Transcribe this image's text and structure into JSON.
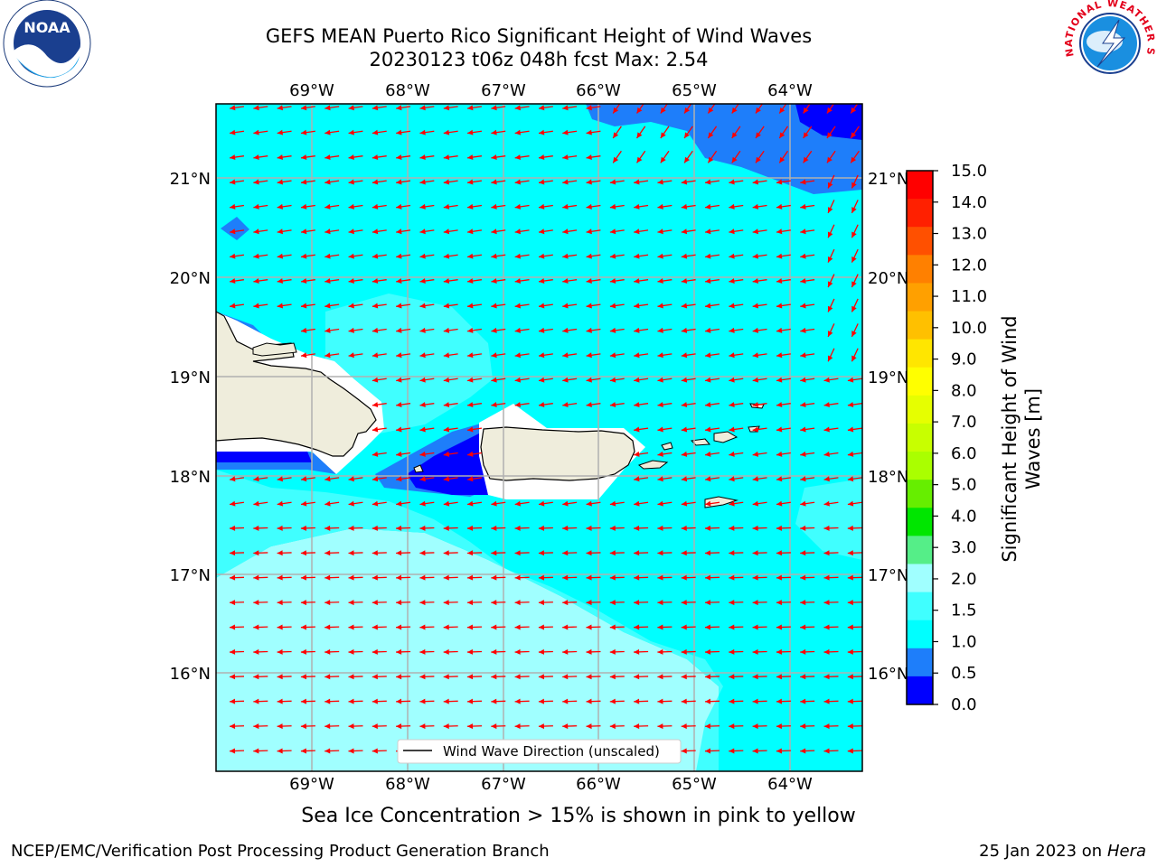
{
  "header": {
    "title_line1": "GEFS MEAN Puerto Rico Significant Height of Wind Waves",
    "title_line2": "20230123 t06z 048h fcst   Max: 2.54",
    "noaa_logo": "NOAA",
    "nws_logo": "NATIONAL WEATHER SERVICE"
  },
  "map": {
    "lon_ticks": [
      "69°W",
      "68°W",
      "67°W",
      "66°W",
      "65°W",
      "64°W"
    ],
    "lat_ticks": [
      "21°N",
      "20°N",
      "19°N",
      "18°N",
      "17°N",
      "16°N"
    ],
    "legend_label": "Wind Wave Direction (unscaled)",
    "arrow_color": "#ff0000",
    "land_color": "#efeddc",
    "ocean_colors": {
      "0-0.5": "#0000ff",
      "0.5-1.0": "#1e7efa",
      "1.0-1.5": "#00ffff",
      "1.5-2.0": "#40ffff",
      "2.0-3.0": "#a0ffff"
    }
  },
  "colorbar": {
    "label": "Significant Height of Wind Waves [m]",
    "ticks": [
      "15.0",
      "14.0",
      "13.0",
      "12.0",
      "11.0",
      "10.0",
      "9.0",
      "8.0",
      "7.0",
      "6.0",
      "5.0",
      "4.0",
      "3.0",
      "2.0",
      "1.5",
      "1.0",
      "0.5",
      "0.0"
    ],
    "colors_top_to_bottom": [
      "#ff0000",
      "#ff2000",
      "#ff5000",
      "#ff8000",
      "#ffa000",
      "#ffc000",
      "#ffe600",
      "#ffff00",
      "#e6ff00",
      "#c8ff00",
      "#aaff00",
      "#66ee00",
      "#00e600",
      "#55ee88",
      "#a0ffff",
      "#40ffff",
      "#00ffff",
      "#1e7efa",
      "#0000ff"
    ]
  },
  "footer": {
    "note": "Sea Ice Concentration > 15% is shown in pink to yellow",
    "left": "NCEP/EMC/Verification Post Processing Product Generation Branch",
    "right_date": "25 Jan 2023 on ",
    "right_host": "Hera"
  }
}
